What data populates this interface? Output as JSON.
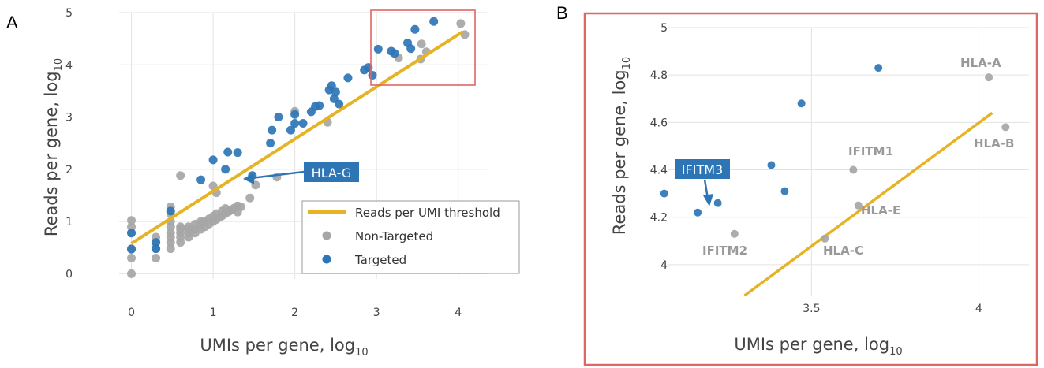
{
  "colors": {
    "targeted": "#2e75b6",
    "non_targeted": "#a6a6a6",
    "threshold": "#e6b325",
    "grid": "#e3e3e3",
    "zoom_box": "#e06666",
    "callout_bg": "#2e75b6"
  },
  "panels": {
    "a": {
      "letter": "A"
    },
    "b": {
      "letter": "B"
    }
  },
  "chart_data": [
    {
      "type": "scatter",
      "panel": "A",
      "xlabel_main": "UMIs per gene, log",
      "xlabel_sub": "10",
      "ylabel_main": "Reads per gene, log",
      "ylabel_sub": "10",
      "xlim": [
        -0.15,
        4.35
      ],
      "ylim": [
        -0.1,
        5.0
      ],
      "xticks": [
        {
          "v": 0,
          "label": "0"
        },
        {
          "v": 1,
          "label": "1"
        },
        {
          "v": 2,
          "label": "2"
        },
        {
          "v": 3,
          "label": "3"
        },
        {
          "v": 4,
          "label": "4"
        }
      ],
      "yticks": [
        {
          "v": 0,
          "label": "0"
        },
        {
          "v": 1,
          "label": "1"
        },
        {
          "v": 2,
          "label": "2"
        },
        {
          "v": 3,
          "label": "3"
        },
        {
          "v": 4,
          "label": "4"
        },
        {
          "v": 5,
          "label": "5"
        }
      ],
      "grid": true,
      "legend_position": "bottom-right",
      "legend": {
        "threshold_label": "Reads per UMI threshold",
        "non_targeted_label": "Non-Targeted",
        "targeted_label": "Targeted"
      },
      "threshold_line": {
        "x": [
          0,
          4.05
        ],
        "y": [
          0.58,
          4.63
        ]
      },
      "series": [
        {
          "name": "Non-Targeted",
          "color": "#a6a6a6",
          "points": [
            [
              0,
              0
            ],
            [
              0,
              0.3
            ],
            [
              0,
              0.48
            ],
            [
              0,
              0.78
            ],
            [
              0,
              0.9
            ],
            [
              0,
              1.02
            ],
            [
              0.3,
              0.3
            ],
            [
              0.3,
              0.48
            ],
            [
              0.3,
              0.6
            ],
            [
              0.3,
              0.7
            ],
            [
              0.48,
              0.48
            ],
            [
              0.48,
              0.6
            ],
            [
              0.48,
              0.7
            ],
            [
              0.48,
              0.78
            ],
            [
              0.48,
              0.9
            ],
            [
              0.48,
              1.0
            ],
            [
              0.48,
              1.15
            ],
            [
              0.48,
              1.28
            ],
            [
              0.6,
              0.6
            ],
            [
              0.6,
              0.7
            ],
            [
              0.6,
              0.78
            ],
            [
              0.6,
              0.85
            ],
            [
              0.6,
              0.9
            ],
            [
              0.6,
              1.88
            ],
            [
              0.7,
              0.7
            ],
            [
              0.7,
              0.78
            ],
            [
              0.7,
              0.85
            ],
            [
              0.7,
              0.9
            ],
            [
              0.78,
              0.78
            ],
            [
              0.78,
              0.85
            ],
            [
              0.78,
              0.95
            ],
            [
              0.85,
              0.85
            ],
            [
              0.85,
              0.95
            ],
            [
              0.85,
              1.0
            ],
            [
              0.9,
              0.9
            ],
            [
              0.9,
              1.0
            ],
            [
              0.95,
              0.95
            ],
            [
              0.95,
              1.05
            ],
            [
              1.0,
              1.0
            ],
            [
              1.0,
              1.1
            ],
            [
              1.0,
              1.68
            ],
            [
              1.04,
              1.04
            ],
            [
              1.04,
              1.15
            ],
            [
              1.04,
              1.55
            ],
            [
              1.08,
              1.08
            ],
            [
              1.11,
              1.11
            ],
            [
              1.11,
              1.2
            ],
            [
              1.15,
              1.15
            ],
            [
              1.15,
              1.25
            ],
            [
              1.18,
              1.18
            ],
            [
              1.2,
              1.2
            ],
            [
              1.23,
              1.23
            ],
            [
              1.26,
              1.26
            ],
            [
              1.3,
              1.3
            ],
            [
              1.3,
              1.18
            ],
            [
              1.34,
              1.28
            ],
            [
              1.45,
              1.45
            ],
            [
              1.52,
              1.7
            ],
            [
              1.78,
              1.85
            ],
            [
              2.0,
              3.11
            ],
            [
              2.4,
              2.9
            ],
            [
              3.27,
              4.13
            ],
            [
              3.54,
              4.11
            ],
            [
              3.55,
              4.4
            ],
            [
              3.61,
              4.25
            ],
            [
              4.03,
              4.79
            ],
            [
              4.08,
              4.58
            ]
          ]
        },
        {
          "name": "Targeted",
          "color": "#2e75b6",
          "points": [
            [
              0,
              0.47
            ],
            [
              0,
              0.78
            ],
            [
              0.3,
              0.48
            ],
            [
              0.3,
              0.6
            ],
            [
              0.48,
              1.2
            ],
            [
              0.85,
              1.8
            ],
            [
              1.0,
              2.18
            ],
            [
              1.15,
              2.0
            ],
            [
              1.18,
              2.33
            ],
            [
              1.3,
              2.32
            ],
            [
              1.48,
              1.88
            ],
            [
              1.7,
              2.5
            ],
            [
              1.72,
              2.75
            ],
            [
              1.8,
              3.0
            ],
            [
              1.95,
              2.75
            ],
            [
              2.0,
              2.88
            ],
            [
              2.0,
              3.05
            ],
            [
              2.1,
              2.88
            ],
            [
              2.2,
              3.1
            ],
            [
              2.25,
              3.2
            ],
            [
              2.3,
              3.22
            ],
            [
              2.42,
              3.52
            ],
            [
              2.45,
              3.6
            ],
            [
              2.48,
              3.35
            ],
            [
              2.5,
              3.48
            ],
            [
              2.54,
              3.25
            ],
            [
              2.65,
              3.75
            ],
            [
              2.85,
              3.9
            ],
            [
              2.9,
              3.95
            ],
            [
              2.95,
              3.8
            ],
            [
              3.02,
              4.3
            ],
            [
              3.18,
              4.26
            ],
            [
              3.22,
              4.22
            ],
            [
              3.38,
              4.42
            ],
            [
              3.42,
              4.31
            ],
            [
              3.47,
              4.68
            ],
            [
              3.7,
              4.83
            ]
          ]
        }
      ],
      "annotations": [
        {
          "label": "HLA-G",
          "x": 1.45,
          "y": 1.88
        }
      ]
    },
    {
      "type": "scatter",
      "panel": "B",
      "xlabel_main": "UMIs per gene, log",
      "xlabel_sub": "10",
      "ylabel_main": "Reads per gene, log",
      "ylabel_sub": "10",
      "xlim": [
        3.07,
        4.15
      ],
      "ylim": [
        3.87,
        5.0
      ],
      "xticks": [
        {
          "v": 3.5,
          "label": "3.5"
        },
        {
          "v": 4,
          "label": "4"
        }
      ],
      "yticks": [
        {
          "v": 4,
          "label": "4"
        },
        {
          "v": 4.2,
          "label": "4.2"
        },
        {
          "v": 4.4,
          "label": "4.4"
        },
        {
          "v": 4.6,
          "label": "4.6"
        },
        {
          "v": 4.8,
          "label": "4.8"
        },
        {
          "v": 5,
          "label": "5"
        }
      ],
      "grid": true,
      "threshold_line": {
        "x": [
          3.3,
          4.04
        ],
        "y": [
          3.87,
          4.64
        ]
      },
      "series": [
        {
          "name": "Targeted",
          "color": "#2e75b6",
          "points": [
            [
              3.06,
              4.3
            ],
            [
              3.16,
              4.22
            ],
            [
              3.22,
              4.26
            ],
            [
              3.38,
              4.42
            ],
            [
              3.42,
              4.31
            ],
            [
              3.47,
              4.68
            ],
            [
              3.7,
              4.83
            ]
          ]
        },
        {
          "name": "Non-Targeted",
          "color": "#a6a6a6",
          "points": [
            [
              3.27,
              4.13
            ],
            [
              3.54,
              4.11
            ],
            [
              3.625,
              4.4
            ],
            [
              3.64,
              4.25
            ],
            [
              4.03,
              4.79
            ],
            [
              4.08,
              4.58
            ]
          ]
        }
      ],
      "annotations": [
        {
          "label": "HLA-A"
        },
        {
          "label": "HLA-B"
        },
        {
          "label": "IFITM1"
        },
        {
          "label": "HLA-E"
        },
        {
          "label": "HLA-C"
        },
        {
          "label": "IFITM2"
        },
        {
          "label": "IFITM3"
        }
      ]
    }
  ]
}
